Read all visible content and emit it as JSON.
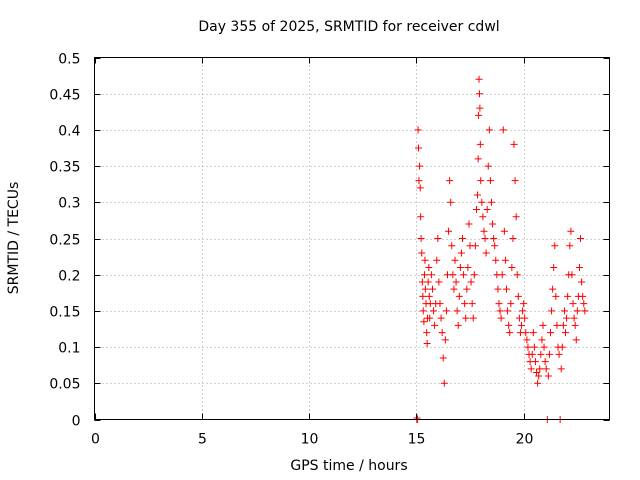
{
  "chart_data": {
    "type": "scatter",
    "title": "Day 355 of 2025, SRMTID for receiver cdwl",
    "xlabel": "GPS time / hours",
    "ylabel": "SRMTID / TECUs",
    "xlim": [
      0,
      24
    ],
    "ylim": [
      0,
      0.5
    ],
    "xticks": [
      0,
      5,
      10,
      15,
      20
    ],
    "xtick_labels": [
      "0",
      "5",
      "10",
      "15",
      "20"
    ],
    "yticks": [
      0,
      0.05,
      0.1,
      0.15,
      0.2,
      0.25,
      0.3,
      0.35,
      0.4,
      0.45,
      0.5
    ],
    "ytick_labels": [
      "0",
      "0.05",
      "0.1",
      "0.15",
      "0.2",
      "0.25",
      "0.3",
      "0.35",
      "0.4",
      "0.45",
      "0.5"
    ],
    "grid": true,
    "marker": "+",
    "color": "#ff0000",
    "series": [
      {
        "points": [
          [
            15.02,
            0.0
          ],
          [
            15.03,
            0.002
          ],
          [
            15.05,
            0.0
          ],
          [
            15.08,
            0.4
          ],
          [
            15.1,
            0.375
          ],
          [
            15.12,
            0.33
          ],
          [
            15.15,
            0.35
          ],
          [
            15.18,
            0.32
          ],
          [
            15.2,
            0.28
          ],
          [
            15.22,
            0.25
          ],
          [
            15.25,
            0.23
          ],
          [
            15.28,
            0.19
          ],
          [
            15.3,
            0.17
          ],
          [
            15.32,
            0.15
          ],
          [
            15.35,
            0.135
          ],
          [
            15.38,
            0.2
          ],
          [
            15.4,
            0.22
          ],
          [
            15.42,
            0.18
          ],
          [
            15.45,
            0.16
          ],
          [
            15.48,
            0.12
          ],
          [
            15.5,
            0.105
          ],
          [
            15.52,
            0.14
          ],
          [
            15.55,
            0.19
          ],
          [
            15.58,
            0.21
          ],
          [
            15.6,
            0.17
          ],
          [
            15.62,
            0.14
          ],
          [
            15.65,
            0.16
          ],
          [
            15.7,
            0.2
          ],
          [
            15.75,
            0.18
          ],
          [
            15.8,
            0.15
          ],
          [
            15.85,
            0.13
          ],
          [
            15.9,
            0.16
          ],
          [
            15.95,
            0.22
          ],
          [
            16.0,
            0.25
          ],
          [
            16.05,
            0.19
          ],
          [
            16.1,
            0.16
          ],
          [
            16.15,
            0.14
          ],
          [
            16.2,
            0.12
          ],
          [
            16.25,
            0.085
          ],
          [
            16.3,
            0.05
          ],
          [
            16.35,
            0.11
          ],
          [
            16.4,
            0.15
          ],
          [
            16.45,
            0.2
          ],
          [
            16.5,
            0.26
          ],
          [
            16.55,
            0.33
          ],
          [
            16.6,
            0.3
          ],
          [
            16.65,
            0.24
          ],
          [
            16.7,
            0.2
          ],
          [
            16.75,
            0.18
          ],
          [
            16.8,
            0.22
          ],
          [
            16.85,
            0.19
          ],
          [
            16.9,
            0.15
          ],
          [
            16.95,
            0.13
          ],
          [
            17.0,
            0.17
          ],
          [
            17.05,
            0.21
          ],
          [
            17.1,
            0.23
          ],
          [
            17.15,
            0.25
          ],
          [
            17.2,
            0.2
          ],
          [
            17.25,
            0.16
          ],
          [
            17.3,
            0.14
          ],
          [
            17.35,
            0.18
          ],
          [
            17.4,
            0.21
          ],
          [
            17.45,
            0.27
          ],
          [
            17.5,
            0.24
          ],
          [
            17.55,
            0.19
          ],
          [
            17.6,
            0.16
          ],
          [
            17.65,
            0.14
          ],
          [
            17.7,
            0.2
          ],
          [
            17.75,
            0.24
          ],
          [
            17.8,
            0.29
          ],
          [
            17.85,
            0.31
          ],
          [
            17.88,
            0.36
          ],
          [
            17.9,
            0.42
          ],
          [
            17.92,
            0.47
          ],
          [
            17.94,
            0.45
          ],
          [
            17.96,
            0.43
          ],
          [
            17.98,
            0.38
          ],
          [
            18.0,
            0.33
          ],
          [
            18.05,
            0.3
          ],
          [
            18.1,
            0.28
          ],
          [
            18.15,
            0.26
          ],
          [
            18.2,
            0.25
          ],
          [
            18.25,
            0.23
          ],
          [
            18.3,
            0.29
          ],
          [
            18.35,
            0.35
          ],
          [
            18.4,
            0.4
          ],
          [
            18.45,
            0.33
          ],
          [
            18.5,
            0.3
          ],
          [
            18.55,
            0.27
          ],
          [
            18.6,
            0.25
          ],
          [
            18.65,
            0.24
          ],
          [
            18.7,
            0.22
          ],
          [
            18.75,
            0.2
          ],
          [
            18.8,
            0.18
          ],
          [
            18.85,
            0.16
          ],
          [
            18.9,
            0.15
          ],
          [
            18.95,
            0.14
          ],
          [
            19.0,
            0.2
          ],
          [
            19.05,
            0.4
          ],
          [
            19.1,
            0.26
          ],
          [
            19.15,
            0.22
          ],
          [
            19.2,
            0.18
          ],
          [
            19.25,
            0.15
          ],
          [
            19.3,
            0.13
          ],
          [
            19.35,
            0.12
          ],
          [
            19.4,
            0.16
          ],
          [
            19.45,
            0.21
          ],
          [
            19.5,
            0.25
          ],
          [
            19.55,
            0.38
          ],
          [
            19.6,
            0.33
          ],
          [
            19.65,
            0.28
          ],
          [
            19.7,
            0.2
          ],
          [
            19.75,
            0.17
          ],
          [
            19.8,
            0.14
          ],
          [
            19.85,
            0.12
          ],
          [
            19.9,
            0.13
          ],
          [
            19.95,
            0.15
          ],
          [
            20.0,
            0.16
          ],
          [
            20.05,
            0.14
          ],
          [
            20.1,
            0.12
          ],
          [
            20.15,
            0.11
          ],
          [
            20.2,
            0.1
          ],
          [
            20.25,
            0.09
          ],
          [
            20.3,
            0.08
          ],
          [
            20.35,
            0.07
          ],
          [
            20.4,
            0.09
          ],
          [
            20.45,
            0.12
          ],
          [
            20.5,
            0.1
          ],
          [
            20.55,
            0.08
          ],
          [
            20.6,
            0.065
          ],
          [
            20.65,
            0.05
          ],
          [
            20.7,
            0.06
          ],
          [
            20.75,
            0.07
          ],
          [
            20.8,
            0.09
          ],
          [
            20.85,
            0.11
          ],
          [
            20.9,
            0.13
          ],
          [
            20.95,
            0.1
          ],
          [
            21.0,
            0.08
          ],
          [
            21.05,
            0.07
          ],
          [
            21.1,
            0.0
          ],
          [
            21.15,
            0.06
          ],
          [
            21.2,
            0.09
          ],
          [
            21.25,
            0.12
          ],
          [
            21.3,
            0.15
          ],
          [
            21.35,
            0.18
          ],
          [
            21.4,
            0.21
          ],
          [
            21.45,
            0.24
          ],
          [
            21.5,
            0.17
          ],
          [
            21.55,
            0.13
          ],
          [
            21.6,
            0.1
          ],
          [
            21.65,
            0.09
          ],
          [
            21.7,
            0.0
          ],
          [
            21.75,
            0.07
          ],
          [
            21.8,
            0.1
          ],
          [
            21.85,
            0.13
          ],
          [
            21.9,
            0.15
          ],
          [
            21.95,
            0.12
          ],
          [
            22.0,
            0.14
          ],
          [
            22.05,
            0.17
          ],
          [
            22.1,
            0.2
          ],
          [
            22.15,
            0.24
          ],
          [
            22.2,
            0.26
          ],
          [
            22.25,
            0.2
          ],
          [
            22.3,
            0.16
          ],
          [
            22.35,
            0.14
          ],
          [
            22.4,
            0.13
          ],
          [
            22.45,
            0.11
          ],
          [
            22.5,
            0.15
          ],
          [
            22.55,
            0.17
          ],
          [
            22.6,
            0.21
          ],
          [
            22.65,
            0.25
          ],
          [
            22.7,
            0.19
          ],
          [
            22.75,
            0.17
          ],
          [
            22.8,
            0.16
          ],
          [
            22.85,
            0.15
          ]
        ]
      }
    ]
  }
}
